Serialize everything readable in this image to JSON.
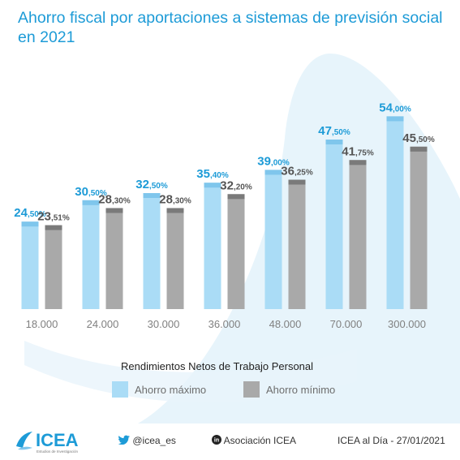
{
  "header": {
    "title": "Ahorro fiscal por aportaciones a sistemas de previsión social en 2021"
  },
  "legend": {
    "title": "Rendimientos Netos de Trabajo Personal",
    "items": [
      {
        "label": "Ahorro máximo",
        "color": "#aadcf6"
      },
      {
        "label": "Ahorro mínimo",
        "color": "#a9a9a9"
      }
    ]
  },
  "footer": {
    "brand": "ICEA",
    "brand_tagline": "Estudios de Investigación",
    "twitter": "@icea_es",
    "linkedin": "Asociación ICEA",
    "source": "ICEA al Día - 27/01/2021"
  },
  "colors": {
    "accent": "#1d9bd7",
    "max_bar": "#aadcf6",
    "max_cap": "#7fc6ec",
    "min_bar": "#a9a9a9",
    "min_cap": "#7a7a7a",
    "min_label": "#555555"
  },
  "chart_data": {
    "type": "bar",
    "title": "Ahorro fiscal por aportaciones a sistemas de previsión social en 2021",
    "xlabel": "Rendimientos Netos de Trabajo Personal",
    "ylabel": "",
    "categories": [
      "18.000",
      "24.000",
      "30.000",
      "36.000",
      "48.000",
      "70.000",
      "300.000"
    ],
    "series": [
      {
        "name": "Ahorro máximo",
        "values": [
          24.5,
          30.5,
          32.5,
          35.4,
          39.0,
          47.5,
          54.0
        ],
        "labels": [
          [
            "24",
            ",50%"
          ],
          [
            "30",
            ",50%"
          ],
          [
            "32",
            ",50%"
          ],
          [
            "35",
            ",40%"
          ],
          [
            "39",
            ",00%"
          ],
          [
            "47",
            ",50%"
          ],
          [
            "54",
            ",00%"
          ]
        ]
      },
      {
        "name": "Ahorro mínimo",
        "values": [
          23.51,
          28.3,
          28.3,
          32.2,
          36.25,
          41.75,
          45.5
        ],
        "labels": [
          [
            "23",
            ",51%"
          ],
          [
            "28",
            ",30%"
          ],
          [
            "28",
            ",30%"
          ],
          [
            "32",
            ",20%"
          ],
          [
            "36",
            ",25%"
          ],
          [
            "41",
            ",75%"
          ],
          [
            "45",
            ",50%"
          ]
        ]
      }
    ],
    "ylim": [
      0,
      60
    ],
    "grid": false,
    "legend_position": "bottom"
  }
}
